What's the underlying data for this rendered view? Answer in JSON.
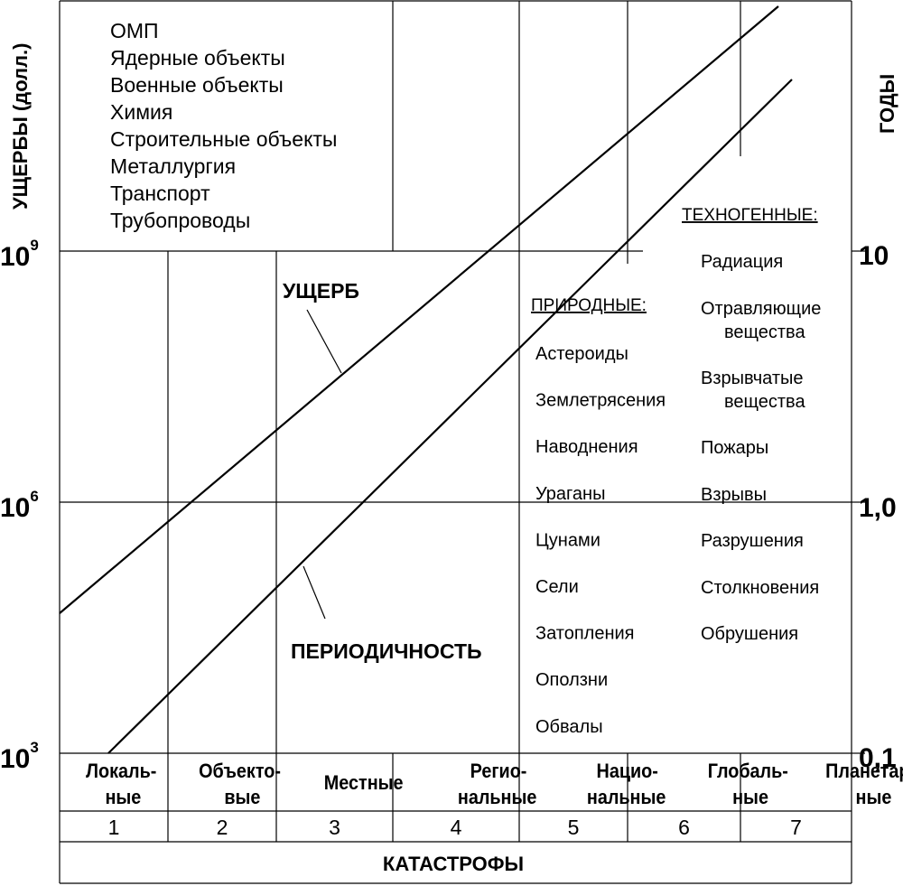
{
  "axes": {
    "y_left_title": "УЩЕРБЫ (долл.)",
    "y_right_title": "ГОДЫ",
    "left_ticks": [
      {
        "base": "10",
        "exp": "9"
      },
      {
        "base": "10",
        "exp": "6"
      },
      {
        "base": "10",
        "exp": "3"
      }
    ],
    "right_ticks": [
      "10",
      "1,0",
      "0,1"
    ],
    "x_title": "КАТАСТРОФЫ"
  },
  "curves": {
    "damage_label": "УЩЕРБ",
    "periodicity_label": "ПЕРИОДИЧНОСТЬ"
  },
  "objects_list": [
    "ОМП",
    "Ядерные объекты",
    "Военные объекты",
    "Химия",
    "Строительные объекты",
    "Металлургия",
    "Транспорт",
    "Трубопроводы"
  ],
  "natural": {
    "heading": "ПРИРОДНЫЕ:",
    "items": [
      "Астероиды",
      "Землетрясения",
      "Наводнения",
      "Ураганы",
      "Цунами",
      "Сели",
      "Затопления",
      "Оползни",
      "Обвалы"
    ]
  },
  "technogenic": {
    "heading": "ТЕХНОГЕННЫЕ:",
    "items": [
      [
        "Радиация"
      ],
      [
        "Отравляющие",
        "вещества"
      ],
      [
        "Взрывчатые",
        "вещества"
      ],
      [
        "Пожары"
      ],
      [
        "Взрывы"
      ],
      [
        "Разрушения"
      ],
      [
        "Столкновения"
      ],
      [
        "Обрушения"
      ]
    ]
  },
  "scales": [
    {
      "lines": [
        "Локаль-",
        "ные"
      ],
      "num": "1"
    },
    {
      "lines": [
        "Объекто-",
        "вые"
      ],
      "num": "2"
    },
    {
      "lines": [
        "Местные"
      ],
      "num": "3"
    },
    {
      "lines": [
        "Регио-",
        "нальные"
      ],
      "num": "4"
    },
    {
      "lines": [
        "Нацио-",
        "нальные"
      ],
      "num": "5"
    },
    {
      "lines": [
        "Глобаль-",
        "ные"
      ],
      "num": "6"
    },
    {
      "lines": [
        "Планетар-",
        "ные"
      ],
      "num": "7"
    }
  ]
}
